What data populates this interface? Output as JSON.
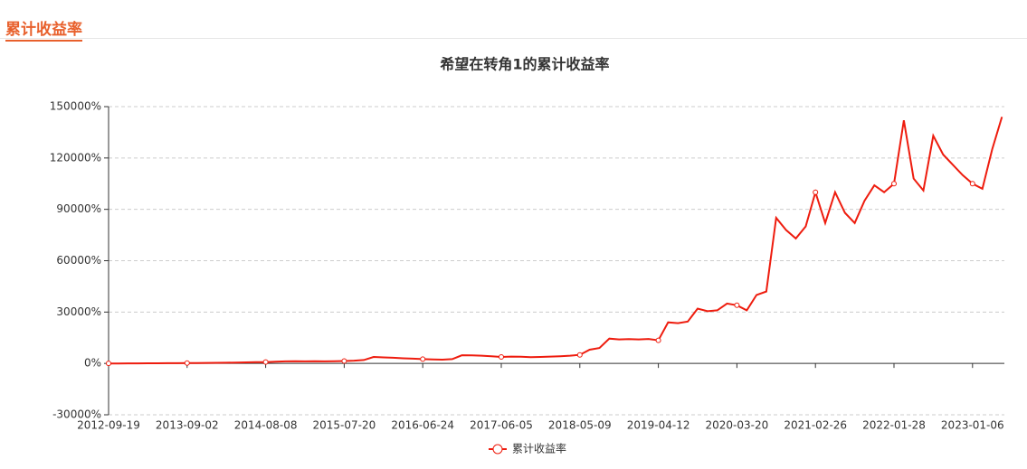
{
  "header": {
    "title": "累计收益率"
  },
  "chart_data": {
    "type": "line",
    "title": "希望在转角1的累计收益率",
    "categories": [
      "2012-09-19",
      null,
      null,
      null,
      null,
      null,
      null,
      null,
      "2013-09-02",
      null,
      null,
      null,
      null,
      null,
      null,
      null,
      "2014-08-08",
      null,
      null,
      null,
      null,
      null,
      null,
      null,
      "2015-07-20",
      null,
      null,
      null,
      null,
      null,
      null,
      null,
      "2016-06-24",
      null,
      null,
      null,
      null,
      null,
      null,
      null,
      "2017-06-05",
      null,
      null,
      null,
      null,
      null,
      null,
      null,
      "2018-05-09",
      null,
      null,
      null,
      null,
      null,
      null,
      null,
      "2019-04-12",
      null,
      null,
      null,
      null,
      null,
      null,
      null,
      "2020-03-20",
      null,
      null,
      null,
      null,
      null,
      null,
      null,
      "2021-02-26",
      null,
      null,
      null,
      null,
      null,
      null,
      null,
      "2022-01-28",
      null,
      null,
      null,
      null,
      null,
      null,
      null,
      "2023-01-06",
      null,
      null,
      null
    ],
    "series": [
      {
        "name": "累计收益率",
        "color": "#ee1c0e",
        "values": [
          0,
          0,
          50,
          50,
          100,
          100,
          150,
          150,
          200,
          250,
          300,
          350,
          400,
          500,
          600,
          700,
          800,
          1000,
          1200,
          1300,
          1200,
          1300,
          1200,
          1300,
          1400,
          1600,
          2000,
          3800,
          3500,
          3300,
          3000,
          2800,
          2500,
          2300,
          2200,
          2500,
          4800,
          4700,
          4500,
          4200,
          3800,
          4000,
          3900,
          3700,
          3800,
          4000,
          4200,
          4500,
          5000,
          8000,
          9000,
          14500,
          14000,
          14200,
          14000,
          14300,
          13500,
          24000,
          23500,
          24500,
          32000,
          30500,
          31000,
          35000,
          34000,
          31000,
          40000,
          42000,
          85000,
          78000,
          73000,
          80000,
          100000,
          82000,
          100000,
          88000,
          82000,
          95000,
          104000,
          100000,
          105000,
          142000,
          108000,
          101000,
          133000,
          122000,
          116000,
          110000,
          105000,
          102000,
          125000,
          144000
        ]
      }
    ],
    "ylim": [
      -30000,
      150000
    ],
    "yticks": [
      {
        "value": -30000,
        "label": "-30000%"
      },
      {
        "value": 0,
        "label": "0%"
      },
      {
        "value": 30000,
        "label": "30000%"
      },
      {
        "value": 60000,
        "label": "60000%"
      },
      {
        "value": 90000,
        "label": "90000%"
      },
      {
        "value": 120000,
        "label": "120000%"
      },
      {
        "value": 150000,
        "label": "150000%"
      }
    ],
    "grid": true,
    "legend": "bottom"
  }
}
